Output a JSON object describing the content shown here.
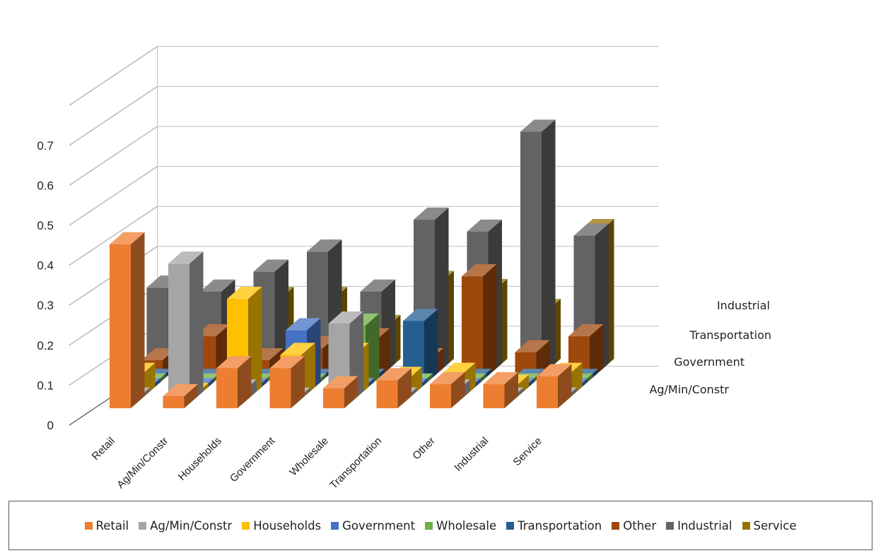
{
  "chart_data": {
    "type": "bar",
    "subtype": "3d-column",
    "title": "",
    "xlabel": "",
    "ylabel": "",
    "ylim": [
      0,
      0.7
    ],
    "yticks": [
      "0",
      "0.1",
      "0.2",
      "0.3",
      "0.4",
      "0.5",
      "0.6",
      "0.7"
    ],
    "grid": true,
    "legend_position": "bottom",
    "categories": [
      "Retail",
      "Ag/Min/Constr",
      "Households",
      "Government",
      "Wholesale",
      "Transportation",
      "Other",
      "Industrial",
      "Service"
    ],
    "depth_labels": [
      "Ag/Min/Constr",
      "Government",
      "Transportation",
      "Industrial"
    ],
    "series": [
      {
        "name": "Retail",
        "color": "#ED7D31",
        "values": [
          0.41,
          0.03,
          0.1,
          0.1,
          0.05,
          0.07,
          0.06,
          0.06,
          0.08
        ]
      },
      {
        "name": "Ag/Min/Constr",
        "color": "#A5A5A5",
        "values": [
          0.01,
          0.35,
          0.03,
          0.01,
          0.2,
          0.01,
          0.03,
          0.01,
          0.01
        ]
      },
      {
        "name": "Households",
        "color": "#FFC000",
        "values": [
          0.06,
          0.01,
          0.25,
          0.11,
          0.11,
          0.05,
          0.06,
          0.03,
          0.06
        ]
      },
      {
        "name": "Government",
        "color": "#4472C4",
        "values": [
          0.01,
          0.01,
          0.01,
          0.16,
          0.01,
          0.01,
          0.01,
          0.01,
          0.01
        ]
      },
      {
        "name": "Wholesale",
        "color": "#70AD47",
        "values": [
          0.01,
          0.01,
          0.01,
          0.01,
          0.16,
          0.01,
          0.01,
          0.01,
          0.01
        ]
      },
      {
        "name": "Transportation",
        "color": "#255E91",
        "values": [
          0.01,
          0.01,
          0.01,
          0.01,
          0.01,
          0.16,
          0.01,
          0.01,
          0.01
        ]
      },
      {
        "name": "Other",
        "color": "#9E480E",
        "values": [
          0.05,
          0.11,
          0.05,
          0.08,
          0.1,
          0.05,
          0.26,
          0.07,
          0.11
        ]
      },
      {
        "name": "Industrial",
        "color": "#636363",
        "values": [
          0.22,
          0.21,
          0.26,
          0.31,
          0.21,
          0.39,
          0.36,
          0.61,
          0.35
        ]
      },
      {
        "name": "Service",
        "color": "#997300",
        "values": [
          0.17,
          0.14,
          0.18,
          0.18,
          0.11,
          0.22,
          0.2,
          0.15,
          0.35
        ]
      }
    ]
  }
}
